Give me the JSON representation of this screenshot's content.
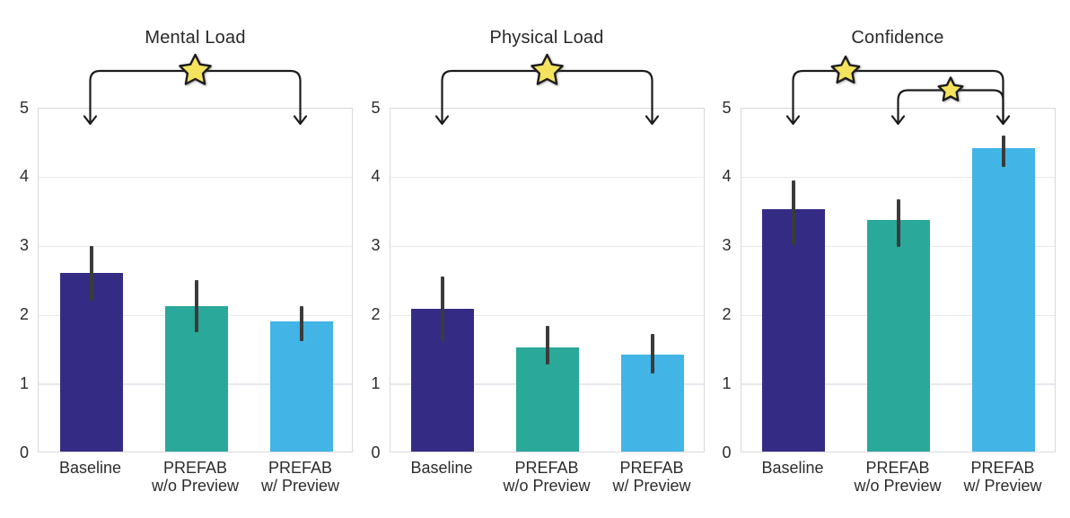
{
  "figure": {
    "background": "#ffffff",
    "description": "Three-panel bar chart of survey ratings with significance brackets"
  },
  "palette": {
    "bar_colors": [
      "#342b85",
      "#2aa89a",
      "#42b4e6"
    ],
    "error_bar_color": "#3b3b3b",
    "bracket_color": "#1c1c1c",
    "star_fill": "#f5e35e",
    "star_stroke": "#1d1d1d",
    "grid_color": "#e8e8ed",
    "spine_color": "#d9d9de",
    "text_color": "#2c2c2c"
  },
  "chart_data": [
    {
      "type": "bar",
      "title": "Mental Load",
      "categories": [
        "Baseline",
        "PREFAB\nw/o Preview",
        "PREFAB\nw/ Preview"
      ],
      "values": [
        2.59,
        2.11,
        1.88
      ],
      "error_low": [
        2.21,
        1.76,
        1.63
      ],
      "error_high": [
        3.0,
        2.51,
        2.13
      ],
      "ylim": [
        0,
        5
      ],
      "yticks": [
        "0",
        "1",
        "2",
        "3",
        "4",
        "5"
      ],
      "grid": true,
      "significance_brackets": [
        {
          "from": 0,
          "to": 2,
          "marker": "star",
          "level": 0,
          "star_frac": 0.5,
          "star_size": 18
        }
      ]
    },
    {
      "type": "bar",
      "title": "Physical Load",
      "categories": [
        "Baseline",
        "PREFAB\nw/o Preview",
        "PREFAB\nw/ Preview"
      ],
      "values": [
        2.07,
        1.51,
        1.4
      ],
      "error_low": [
        1.63,
        1.28,
        1.16
      ],
      "error_high": [
        2.56,
        1.85,
        1.73
      ],
      "ylim": [
        0,
        5
      ],
      "yticks": [
        "0",
        "1",
        "2",
        "3",
        "4",
        "5"
      ],
      "grid": true,
      "significance_brackets": [
        {
          "from": 0,
          "to": 2,
          "marker": "star",
          "level": 0,
          "star_frac": 0.5,
          "star_size": 18
        }
      ]
    },
    {
      "type": "bar",
      "title": "Confidence",
      "categories": [
        "Baseline",
        "PREFAB\nw/o Preview",
        "PREFAB\nw/ Preview"
      ],
      "values": [
        3.51,
        3.35,
        4.4
      ],
      "error_low": [
        3.02,
        2.99,
        4.15
      ],
      "error_high": [
        3.96,
        3.68,
        4.6
      ],
      "ylim": [
        0,
        5
      ],
      "yticks": [
        "0",
        "1",
        "2",
        "3",
        "4",
        "5"
      ],
      "grid": true,
      "significance_brackets": [
        {
          "from": 0,
          "to": 2,
          "marker": "star",
          "level": 0,
          "star_frac": 0.25,
          "star_size": 16
        },
        {
          "from": 1,
          "to": 2,
          "marker": "star",
          "level": 1,
          "star_frac": 0.5,
          "star_size": 14
        }
      ]
    }
  ]
}
